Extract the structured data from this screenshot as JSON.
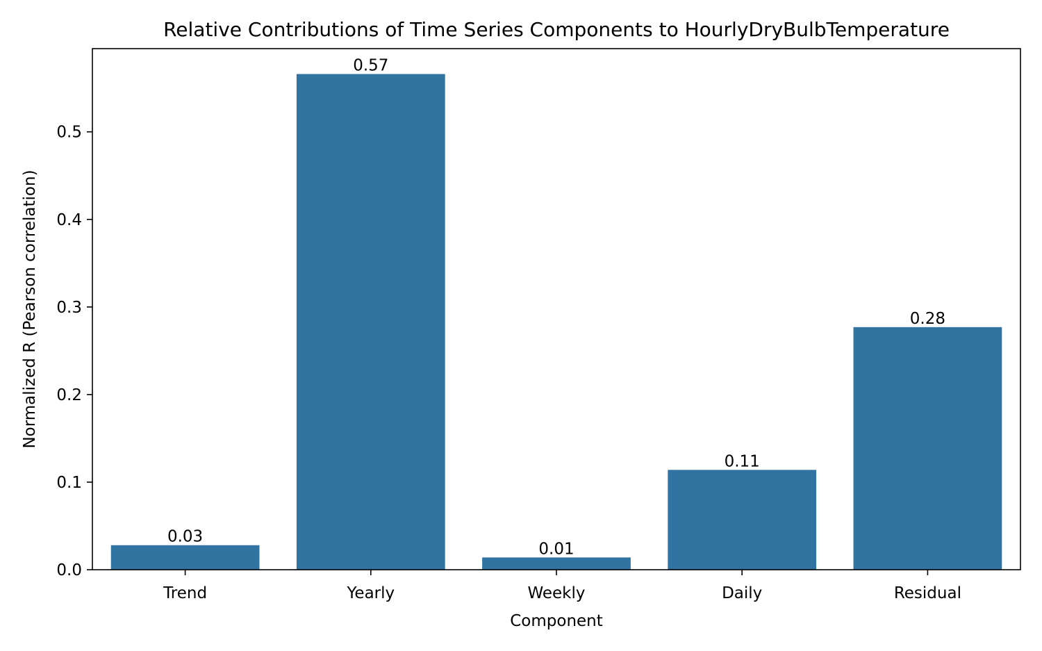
{
  "chart_data": {
    "type": "bar",
    "title": "Relative Contributions of Time Series Components to HourlyDryBulbTemperature",
    "xlabel": "Component",
    "ylabel": "Normalized R (Pearson correlation)",
    "categories": [
      "Trend",
      "Yearly",
      "Weekly",
      "Daily",
      "Residual"
    ],
    "values": [
      0.028,
      0.566,
      0.014,
      0.114,
      0.277
    ],
    "data_labels": [
      "0.03",
      "0.57",
      "0.01",
      "0.11",
      "0.28"
    ],
    "ylim": [
      0,
      0.595
    ],
    "yticks": [
      0.0,
      0.1,
      0.2,
      0.3,
      0.4,
      0.5
    ],
    "ytick_labels": [
      "0.0",
      "0.1",
      "0.2",
      "0.3",
      "0.4",
      "0.5"
    ],
    "bar_color": "#3274a1",
    "grid": false,
    "legend": "none"
  }
}
